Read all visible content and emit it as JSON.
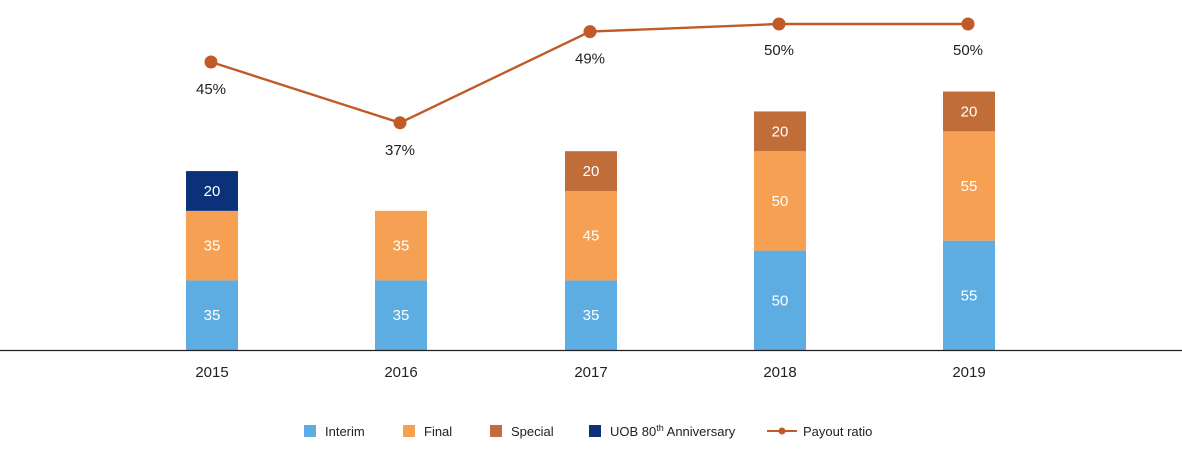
{
  "chart_data": {
    "type": "bar",
    "stacked": true,
    "categories": [
      "2015",
      "2016",
      "2017",
      "2018",
      "2019"
    ],
    "series": [
      {
        "name": "Interim",
        "color": "#5dade2",
        "values": [
          35,
          35,
          35,
          50,
          55
        ]
      },
      {
        "name": "Final",
        "color": "#f5a052",
        "values": [
          35,
          35,
          45,
          50,
          55
        ]
      },
      {
        "name": "Special",
        "color": "#c06d3a",
        "values": [
          null,
          null,
          20,
          20,
          20
        ]
      },
      {
        "name": "UOB 80",
        "name_sup": "th",
        "name_rest": " Anniversary",
        "color": "#0b3279",
        "values": [
          20,
          null,
          null,
          null,
          null
        ]
      }
    ],
    "line_series": {
      "name": "Payout ratio",
      "color": "#c05a28",
      "values": [
        45,
        37,
        49,
        50,
        50
      ],
      "labels": [
        "45%",
        "37%",
        "49%",
        "50%",
        "50%"
      ]
    },
    "legend_position": "bottom",
    "grid": false
  }
}
